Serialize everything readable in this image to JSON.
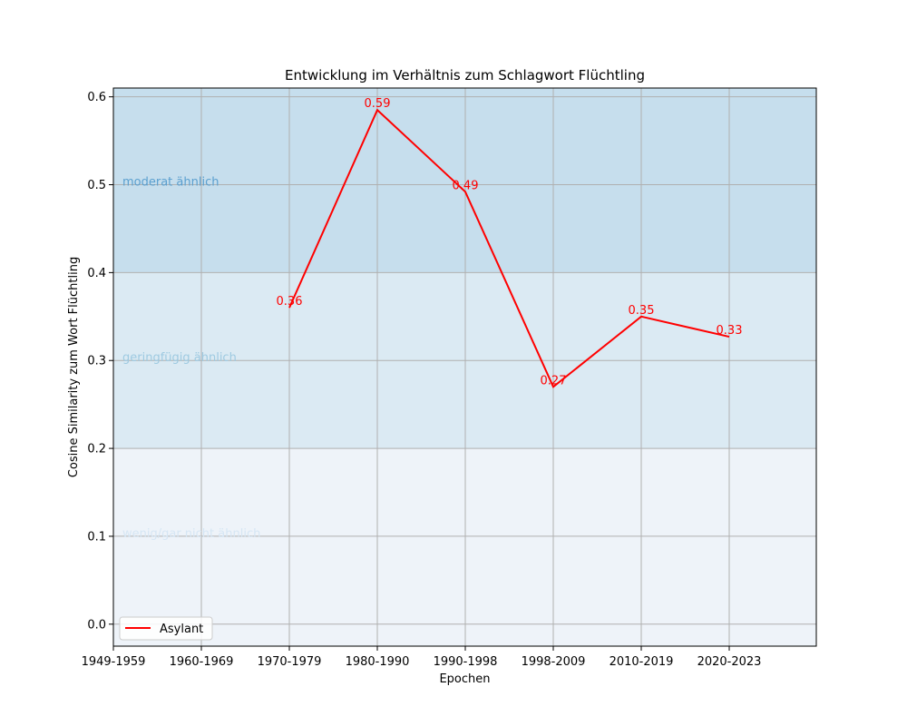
{
  "chart_data": {
    "type": "line",
    "title": "Entwicklung im Verhältnis zum Schlagwort Flüchtling",
    "xlabel": "Epochen",
    "ylabel": "Cosine Similarity zum Wort Flüchtling",
    "categories": [
      "1949-1959",
      "1960-1969",
      "1970-1979",
      "1980-1990",
      "1990-1998",
      "1998-2009",
      "2010-2019",
      "2020-2023"
    ],
    "ylim": [
      -0.025,
      0.61
    ],
    "yticks": [
      0.0,
      0.1,
      0.2,
      0.3,
      0.4,
      0.5,
      0.6
    ],
    "ytick_labels": [
      "0.0",
      "0.1",
      "0.2",
      "0.3",
      "0.4",
      "0.5",
      "0.6"
    ],
    "grid": true,
    "legend_position": "lower-left",
    "series": [
      {
        "name": "Asylant",
        "color": "#ff0000",
        "values": [
          null,
          null,
          0.36,
          0.585,
          0.492,
          0.27,
          0.35,
          0.327
        ],
        "labels": [
          null,
          null,
          "0.36",
          "0.59",
          "0.49",
          "0.27",
          "0.35",
          "0.33"
        ]
      }
    ],
    "bands": [
      {
        "from": 0.4,
        "to": 0.61,
        "label": "moderat ähnlich",
        "fill": "#c6deed",
        "text_color": "#5a9fcf",
        "label_y": 0.5
      },
      {
        "from": 0.2,
        "to": 0.4,
        "label": "geringfügig ähnlich",
        "fill": "#dbeaf3",
        "text_color": "#9ecae1",
        "label_y": 0.3
      },
      {
        "from": -0.025,
        "to": 0.2,
        "label": "wenig/gar nicht ähnlich",
        "fill": "#eef3f9",
        "text_color": "#d6e6f4",
        "label_y": 0.1
      }
    ]
  }
}
